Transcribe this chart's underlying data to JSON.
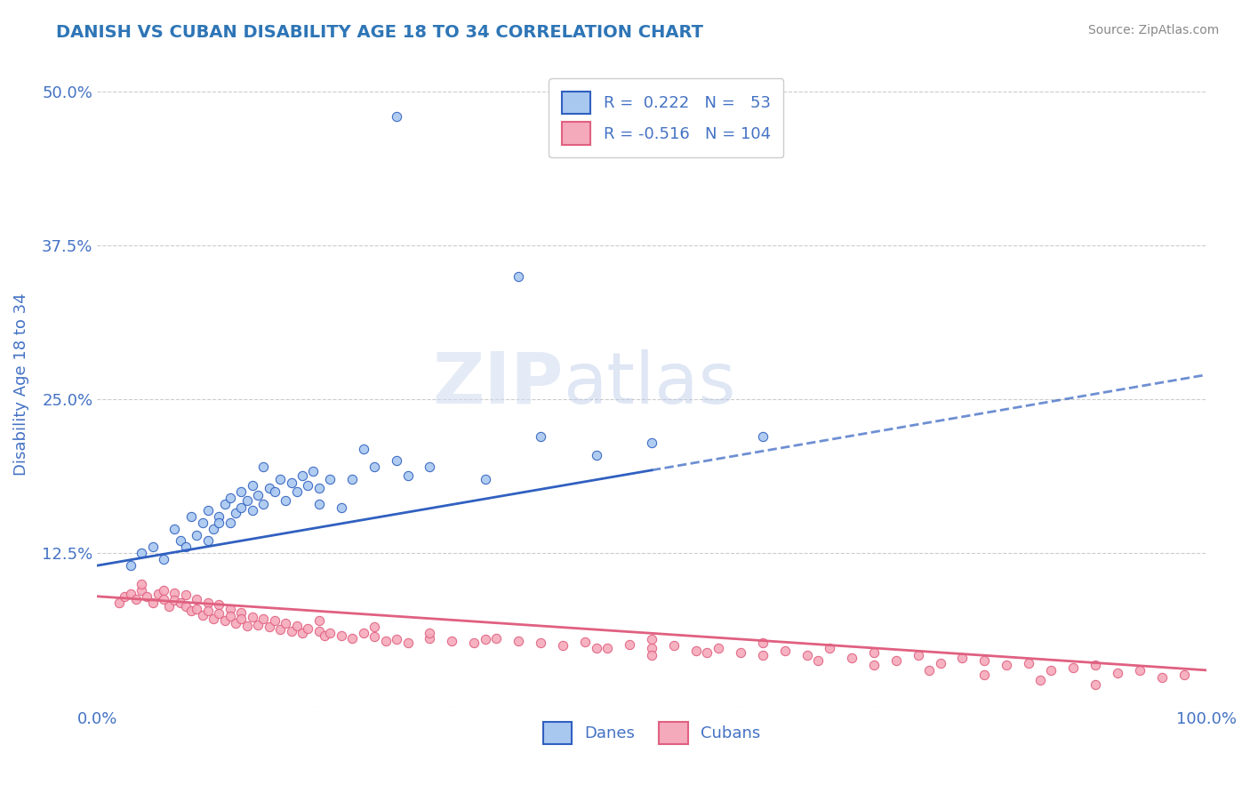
{
  "title": "DANISH VS CUBAN DISABILITY AGE 18 TO 34 CORRELATION CHART",
  "source": "Source: ZipAtlas.com",
  "xlabel": "",
  "ylabel": "Disability Age 18 to 34",
  "xlim": [
    0.0,
    1.0
  ],
  "ylim": [
    0.0,
    0.525
  ],
  "yticks": [
    0.0,
    0.125,
    0.25,
    0.375,
    0.5
  ],
  "ytick_labels": [
    "",
    "12.5%",
    "25.0%",
    "37.5%",
    "50.0%"
  ],
  "xticks": [
    0.0,
    1.0
  ],
  "xtick_labels": [
    "0.0%",
    "100.0%"
  ],
  "blue_R": 0.222,
  "blue_N": 53,
  "pink_R": -0.516,
  "pink_N": 104,
  "blue_color": "#A8C8F0",
  "pink_color": "#F5AABB",
  "blue_line_color": "#3060C0",
  "pink_line_color": "#E06080",
  "title_color": "#2E75B6",
  "axis_color": "#4472C4",
  "grid_color": "#CCCCCC",
  "background_color": "#FFFFFF",
  "legend_blue_label": "Danes",
  "legend_pink_label": "Cubans",
  "watermark_zip": "ZIP",
  "watermark_atlas": "atlas",
  "blue_line_x0": 0.0,
  "blue_line_y0": 0.115,
  "blue_line_x1": 1.0,
  "blue_line_y1": 0.27,
  "blue_line_solid_end": 0.5,
  "pink_line_x0": 0.0,
  "pink_line_y0": 0.09,
  "pink_line_x1": 1.0,
  "pink_line_y1": 0.03,
  "blue_scatter_x": [
    0.03,
    0.04,
    0.05,
    0.06,
    0.07,
    0.075,
    0.08,
    0.085,
    0.09,
    0.095,
    0.1,
    0.1,
    0.105,
    0.11,
    0.11,
    0.115,
    0.12,
    0.12,
    0.125,
    0.13,
    0.13,
    0.135,
    0.14,
    0.14,
    0.145,
    0.15,
    0.155,
    0.16,
    0.165,
    0.17,
    0.175,
    0.18,
    0.185,
    0.19,
    0.195,
    0.2,
    0.21,
    0.22,
    0.23,
    0.24,
    0.25,
    0.27,
    0.28,
    0.3,
    0.35,
    0.4,
    0.45,
    0.27,
    0.5,
    0.6,
    0.2,
    0.15,
    0.38
  ],
  "blue_scatter_y": [
    0.115,
    0.125,
    0.13,
    0.12,
    0.145,
    0.135,
    0.13,
    0.155,
    0.14,
    0.15,
    0.135,
    0.16,
    0.145,
    0.155,
    0.15,
    0.165,
    0.15,
    0.17,
    0.158,
    0.162,
    0.175,
    0.168,
    0.16,
    0.18,
    0.172,
    0.165,
    0.178,
    0.175,
    0.185,
    0.168,
    0.182,
    0.175,
    0.188,
    0.18,
    0.192,
    0.178,
    0.185,
    0.162,
    0.185,
    0.21,
    0.195,
    0.2,
    0.188,
    0.195,
    0.185,
    0.22,
    0.205,
    0.48,
    0.215,
    0.22,
    0.165,
    0.195,
    0.35
  ],
  "pink_scatter_x": [
    0.02,
    0.025,
    0.03,
    0.035,
    0.04,
    0.04,
    0.045,
    0.05,
    0.055,
    0.06,
    0.06,
    0.065,
    0.07,
    0.07,
    0.075,
    0.08,
    0.08,
    0.085,
    0.09,
    0.09,
    0.095,
    0.1,
    0.1,
    0.105,
    0.11,
    0.11,
    0.115,
    0.12,
    0.12,
    0.125,
    0.13,
    0.13,
    0.135,
    0.14,
    0.145,
    0.15,
    0.155,
    0.16,
    0.165,
    0.17,
    0.175,
    0.18,
    0.185,
    0.19,
    0.2,
    0.205,
    0.21,
    0.22,
    0.23,
    0.24,
    0.25,
    0.26,
    0.27,
    0.28,
    0.3,
    0.32,
    0.34,
    0.36,
    0.38,
    0.4,
    0.42,
    0.44,
    0.46,
    0.48,
    0.5,
    0.52,
    0.54,
    0.56,
    0.58,
    0.6,
    0.62,
    0.64,
    0.66,
    0.68,
    0.7,
    0.72,
    0.74,
    0.76,
    0.78,
    0.8,
    0.82,
    0.84,
    0.86,
    0.88,
    0.9,
    0.92,
    0.94,
    0.96,
    0.98,
    0.5,
    0.55,
    0.6,
    0.65,
    0.7,
    0.75,
    0.8,
    0.85,
    0.9,
    0.2,
    0.25,
    0.3,
    0.35,
    0.45,
    0.5
  ],
  "pink_scatter_y": [
    0.085,
    0.09,
    0.092,
    0.088,
    0.095,
    0.1,
    0.09,
    0.085,
    0.092,
    0.095,
    0.088,
    0.082,
    0.093,
    0.087,
    0.085,
    0.091,
    0.082,
    0.078,
    0.088,
    0.08,
    0.075,
    0.085,
    0.078,
    0.072,
    0.083,
    0.076,
    0.07,
    0.08,
    0.074,
    0.068,
    0.077,
    0.072,
    0.066,
    0.073,
    0.067,
    0.072,
    0.065,
    0.07,
    0.063,
    0.068,
    0.062,
    0.066,
    0.06,
    0.064,
    0.062,
    0.058,
    0.06,
    0.058,
    0.056,
    0.06,
    0.057,
    0.054,
    0.055,
    0.052,
    0.056,
    0.054,
    0.052,
    0.056,
    0.054,
    0.052,
    0.05,
    0.053,
    0.048,
    0.051,
    0.055,
    0.05,
    0.046,
    0.048,
    0.044,
    0.052,
    0.046,
    0.042,
    0.048,
    0.04,
    0.044,
    0.038,
    0.042,
    0.036,
    0.04,
    0.038,
    0.034,
    0.036,
    0.03,
    0.032,
    0.034,
    0.028,
    0.03,
    0.024,
    0.026,
    0.048,
    0.044,
    0.042,
    0.038,
    0.034,
    0.03,
    0.026,
    0.022,
    0.018,
    0.07,
    0.065,
    0.06,
    0.055,
    0.048,
    0.042
  ]
}
